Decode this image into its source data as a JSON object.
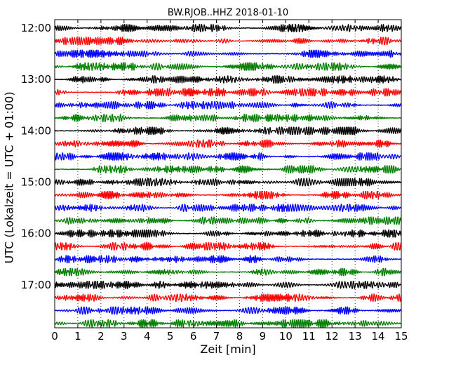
{
  "chart_data": {
    "type": "line",
    "title": "BW.RJOB..HHZ 2018-01-10",
    "xlabel": "Zeit  [min]",
    "ylabel": "UTC (Lokalzeit = UTC + 01:00)",
    "xlim": [
      0,
      15
    ],
    "x_ticks": [
      "0",
      "1",
      "2",
      "3",
      "4",
      "5",
      "6",
      "7",
      "8",
      "9",
      "10",
      "11",
      "12",
      "13",
      "14",
      "15"
    ],
    "y_ticks": [
      "12:00",
      "13:00",
      "14:00",
      "15:00",
      "16:00",
      "17:00"
    ],
    "grid": "vertical dotted at each minute",
    "colors": [
      "#000000",
      "#ff0000",
      "#0000ff",
      "#007f00"
    ],
    "traces": [
      {
        "start": "12:00"
      },
      {
        "start": "12:15"
      },
      {
        "start": "12:30"
      },
      {
        "start": "12:45"
      },
      {
        "start": "13:00"
      },
      {
        "start": "13:15"
      },
      {
        "start": "13:30"
      },
      {
        "start": "13:45"
      },
      {
        "start": "14:00"
      },
      {
        "start": "14:15"
      },
      {
        "start": "14:30"
      },
      {
        "start": "14:45"
      },
      {
        "start": "15:00"
      },
      {
        "start": "15:15"
      },
      {
        "start": "15:30"
      },
      {
        "start": "15:45"
      },
      {
        "start": "16:00"
      },
      {
        "start": "16:15"
      },
      {
        "start": "16:30"
      },
      {
        "start": "16:45"
      },
      {
        "start": "17:00"
      },
      {
        "start": "17:15"
      },
      {
        "start": "17:30"
      },
      {
        "start": "17:45"
      }
    ]
  }
}
